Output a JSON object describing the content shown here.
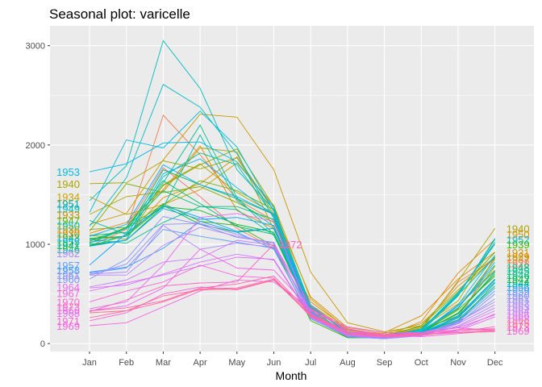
{
  "chart_data": {
    "type": "line",
    "title": "Seasonal plot: varicelle",
    "xlabel": "Month",
    "ylabel": "",
    "categories": [
      "Jan",
      "Feb",
      "Mar",
      "Apr",
      "May",
      "Jun",
      "Jul",
      "Aug",
      "Sep",
      "Oct",
      "Nov",
      "Dec"
    ],
    "ylim": [
      -80,
      3200
    ],
    "yticks": [
      0,
      1000,
      2000,
      3000
    ],
    "grid": true,
    "legend": "none",
    "panel_color": "#ebebeb",
    "series": [
      {
        "name": "1928",
        "color": "#f8766d",
        "values": [
          1010,
          1170,
          1770,
          1480,
          1160,
          960,
          330,
          110,
          60,
          120,
          230,
          880
        ]
      },
      {
        "name": "1929",
        "color": "#f17c4a",
        "values": [
          980,
          1150,
          2300,
          1900,
          1450,
          1240,
          380,
          120,
          80,
          150,
          620,
          850
        ]
      },
      {
        "name": "1930",
        "color": "#e58700",
        "values": [
          1110,
          1220,
          1550,
          1990,
          1340,
          1160,
          420,
          150,
          70,
          220,
          710,
          1050
        ]
      },
      {
        "name": "1931",
        "color": "#d89000",
        "values": [
          1050,
          1080,
          1470,
          1610,
          1880,
          1340,
          470,
          160,
          110,
          280,
          650,
          920
        ]
      },
      {
        "name": "1932",
        "color": "#c99800",
        "values": [
          1200,
          1310,
          1850,
          2310,
          2280,
          1750,
          720,
          210,
          120,
          180,
          580,
          870
        ]
      },
      {
        "name": "1933",
        "color": "#b8a000",
        "values": [
          1300,
          1480,
          1530,
          1970,
          1930,
          1150,
          390,
          140,
          100,
          200,
          540,
          860
        ]
      },
      {
        "name": "1934",
        "color": "#c6a200",
        "values": [
          1480,
          1300,
          1400,
          1550,
          1820,
          1390,
          450,
          140,
          80,
          160,
          400,
          740
        ]
      },
      {
        "name": "1935",
        "color": "#a3a500",
        "values": [
          1090,
          1050,
          1600,
          1810,
          1520,
          1310,
          360,
          130,
          90,
          170,
          430,
          1020
        ]
      },
      {
        "name": "1936",
        "color": "#8fab00",
        "values": [
          1150,
          1170,
          1590,
          1800,
          1960,
          1380,
          350,
          140,
          80,
          140,
          280,
          780
        ]
      },
      {
        "name": "1937",
        "color": "#7cae00",
        "values": [
          1130,
          1610,
          1520,
          1580,
          1420,
          1220,
          340,
          90,
          70,
          120,
          350,
          850
        ]
      },
      {
        "name": "1938",
        "color": "#5bb300",
        "values": [
          1030,
          1170,
          1400,
          1640,
          1540,
          1350,
          380,
          110,
          70,
          180,
          520,
          920
        ]
      },
      {
        "name": "1939",
        "color": "#39b600",
        "values": [
          980,
          1090,
          1410,
          1230,
          1190,
          980,
          230,
          60,
          60,
          110,
          340,
          680
        ]
      },
      {
        "name": "1940",
        "color": "#aba300",
        "values": [
          1610,
          1620,
          1840,
          1760,
          1870,
          1300,
          380,
          100,
          60,
          140,
          630,
          1160
        ]
      },
      {
        "name": "1941",
        "color": "#00b81f",
        "values": [
          990,
          1040,
          1380,
          1340,
          1200,
          1120,
          310,
          80,
          70,
          120,
          300,
          720
        ]
      },
      {
        "name": "1942",
        "color": "#00ba38",
        "values": [
          1060,
          1080,
          1390,
          1200,
          1120,
          1160,
          280,
          60,
          60,
          90,
          260,
          650
        ]
      },
      {
        "name": "1943",
        "color": "#00bc59",
        "values": [
          1090,
          1120,
          1750,
          1600,
          1460,
          1300,
          300,
          70,
          60,
          110,
          310,
          700
        ]
      },
      {
        "name": "1944",
        "color": "#00be6c",
        "values": [
          1010,
          1170,
          1640,
          1410,
          1180,
          1100,
          300,
          80,
          60,
          100,
          240,
          580
        ]
      },
      {
        "name": "1945",
        "color": "#00bf7d",
        "values": [
          1010,
          1160,
          1540,
          1380,
          1380,
          1250,
          290,
          90,
          60,
          110,
          210,
          610
        ]
      },
      {
        "name": "1946",
        "color": "#00c08b",
        "values": [
          1050,
          1010,
          1220,
          1380,
          1350,
          1090,
          320,
          90,
          70,
          110,
          270,
          640
        ]
      },
      {
        "name": "1947",
        "color": "#00c097",
        "values": [
          1240,
          1100,
          1620,
          2200,
          1470,
          1100,
          300,
          100,
          60,
          150,
          490,
          870
        ]
      },
      {
        "name": "1948",
        "color": "#00c1a3",
        "values": [
          1000,
          1040,
          1680,
          1920,
          1800,
          1280,
          310,
          90,
          70,
          130,
          360,
          790
        ]
      },
      {
        "name": "1949",
        "color": "#00bfaf",
        "values": [
          1040,
          1160,
          1370,
          2100,
          1440,
          1180,
          360,
          80,
          70,
          140,
          480,
          1050
        ]
      },
      {
        "name": "1950",
        "color": "#00bebb",
        "values": [
          1440,
          1790,
          3050,
          2570,
          1750,
          1350,
          380,
          100,
          70,
          120,
          480,
          1060
        ]
      },
      {
        "name": "1951",
        "color": "#00bdc4",
        "values": [
          1180,
          1670,
          2610,
          2380,
          1910,
          1260,
          390,
          110,
          70,
          130,
          500,
          1020
        ]
      },
      {
        "name": "1952",
        "color": "#00bcd8",
        "values": [
          1320,
          2050,
          1970,
          2340,
          1980,
          1330,
          370,
          110,
          80,
          140,
          510,
          1000
        ]
      },
      {
        "name": "1953",
        "color": "#00b9e3",
        "values": [
          1730,
          1810,
          2020,
          2030,
          1830,
          1370,
          330,
          80,
          60,
          110,
          390,
          890
        ]
      },
      {
        "name": "1954",
        "color": "#00b4ef",
        "values": [
          1020,
          1080,
          1710,
          1860,
          1570,
          1290,
          280,
          90,
          70,
          120,
          360,
          820
        ]
      },
      {
        "name": "1955",
        "color": "#00aef9",
        "values": [
          1080,
          1200,
          1800,
          1600,
          1480,
          1300,
          320,
          80,
          60,
          110,
          380,
          730
        ]
      },
      {
        "name": "1956",
        "color": "#00a8ff",
        "values": [
          980,
          1040,
          1360,
          1250,
          1270,
          1190,
          300,
          80,
          60,
          100,
          280,
          650
        ]
      },
      {
        "name": "1957",
        "color": "#00a5ff",
        "values": [
          790,
          1110,
          1390,
          1270,
          1130,
          1160,
          290,
          80,
          60,
          100,
          260,
          620
        ]
      },
      {
        "name": "1958",
        "color": "#359cff",
        "values": [
          720,
          770,
          960,
          1230,
          1120,
          950,
          260,
          80,
          60,
          90,
          230,
          560
        ]
      },
      {
        "name": "1959",
        "color": "#619cff",
        "values": [
          710,
          760,
          1150,
          1080,
          1020,
          960,
          250,
          70,
          50,
          90,
          220,
          530
        ]
      },
      {
        "name": "1960",
        "color": "#7f96ff",
        "values": [
          650,
          850,
          1280,
          1200,
          1070,
          1020,
          270,
          70,
          50,
          80,
          200,
          500
        ]
      },
      {
        "name": "1961",
        "color": "#9590ff",
        "values": [
          690,
          800,
          1200,
          1210,
          1100,
          990,
          290,
          70,
          50,
          80,
          210,
          450
        ]
      },
      {
        "name": "1962",
        "color": "#a98bff",
        "values": [
          700,
          720,
          1190,
          950,
          1010,
          970,
          330,
          80,
          70,
          90,
          220,
          420
        ]
      },
      {
        "name": "1963",
        "color": "#b983ff",
        "values": [
          690,
          690,
          990,
          1170,
          1080,
          1010,
          270,
          100,
          80,
          110,
          200,
          390
        ]
      },
      {
        "name": "1964",
        "color": "#c77cff",
        "values": [
          570,
          640,
          820,
          860,
          1040,
          990,
          310,
          90,
          80,
          90,
          180,
          360
        ]
      },
      {
        "name": "1965",
        "color": "#d376ff",
        "values": [
          560,
          590,
          700,
          820,
          900,
          840,
          260,
          80,
          60,
          80,
          170,
          330
        ]
      },
      {
        "name": "1966",
        "color": "#de71f9",
        "values": [
          530,
          610,
          690,
          780,
          870,
          850,
          270,
          90,
          60,
          80,
          140,
          300
        ]
      },
      {
        "name": "1967",
        "color": "#e76bf3",
        "values": [
          350,
          420,
          790,
          1270,
          1310,
          1230,
          300,
          110,
          70,
          80,
          130,
          270
        ]
      },
      {
        "name": "1968",
        "color": "#ef67eb",
        "values": [
          330,
          380,
          560,
          950,
          760,
          740,
          340,
          170,
          110,
          110,
          160,
          290
        ]
      },
      {
        "name": "1969",
        "color": "#f564e3",
        "values": [
          180,
          210,
          370,
          530,
          640,
          620,
          350,
          140,
          80,
          70,
          100,
          130
        ]
      },
      {
        "name": "1970",
        "color": "#fa62db",
        "values": [
          420,
          530,
          620,
          790,
          680,
          660,
          270,
          90,
          70,
          90,
          120,
          170
        ]
      },
      {
        "name": "1971",
        "color": "#fc61d5",
        "values": [
          230,
          310,
          500,
          570,
          540,
          640,
          330,
          150,
          90,
          110,
          160,
          130
        ]
      },
      {
        "name": "1972",
        "color": "#ff61c3",
        "values": [
          320,
          440,
          580,
          610,
          620,
          1000,
          380,
          120,
          90,
          100,
          140,
          140
        ]
      },
      {
        "name": "1973",
        "color": "#ff64b0",
        "values": [
          330,
          360,
          430,
          560,
          600,
          680,
          300,
          120,
          80,
          100,
          140,
          150
        ]
      },
      {
        "name": "1974",
        "color": "#ff689f",
        "values": [
          260,
          330,
          420,
          550,
          560,
          650,
          290,
          100,
          80,
          90,
          110,
          120
        ]
      },
      {
        "name": "1975",
        "color": "#ff6c91",
        "values": [
          310,
          330,
          480,
          540,
          550,
          640,
          280,
          100,
          70,
          90,
          110,
          140
        ]
      }
    ],
    "start_labels": [
      {
        "text": "1953",
        "color": "#00b9e3",
        "y": 1730
      },
      {
        "text": "1940",
        "color": "#aba300",
        "y": 1610
      },
      {
        "text": "1934",
        "color": "#c6a200",
        "y": 1480
      },
      {
        "text": "1951",
        "color": "#00a5a0",
        "y": 1410
      },
      {
        "text": "1949",
        "color": "#00b9c0",
        "y": 1360
      },
      {
        "text": "1933",
        "color": "#c08e00",
        "y": 1300
      },
      {
        "text": "1947",
        "color": "#5bb300",
        "y": 1240
      },
      {
        "text": "1950",
        "color": "#00bebb",
        "y": 1190
      },
      {
        "text": "1936",
        "color": "#a3a500",
        "y": 1150
      },
      {
        "text": "1930",
        "color": "#e58700",
        "y": 1110
      },
      {
        "text": "1943",
        "color": "#00bc59",
        "y": 1070
      },
      {
        "text": "1955",
        "color": "#00aef9",
        "y": 1030
      },
      {
        "text": "1941",
        "color": "#00b81f",
        "y": 990
      },
      {
        "text": "1946",
        "color": "#00c08b",
        "y": 950
      },
      {
        "text": "1962",
        "color": "#a98bff",
        "y": 910
      },
      {
        "text": "1957",
        "color": "#619cff",
        "y": 790
      },
      {
        "text": "1958",
        "color": "#359cff",
        "y": 740
      },
      {
        "text": "1961",
        "color": "#9590ff",
        "y": 690
      },
      {
        "text": "1960",
        "color": "#7f96ff",
        "y": 650
      },
      {
        "text": "1964",
        "color": "#e76bf3",
        "y": 570
      },
      {
        "text": "1967",
        "color": "#f564e3",
        "y": 510
      },
      {
        "text": "1970",
        "color": "#fa62db",
        "y": 420
      },
      {
        "text": "1973",
        "color": "#ff64b0",
        "y": 370
      },
      {
        "text": "1966",
        "color": "#de71f9",
        "y": 340
      },
      {
        "text": "1968",
        "color": "#ef67eb",
        "y": 310
      },
      {
        "text": "1971",
        "color": "#fc61d5",
        "y": 230
      },
      {
        "text": "1969",
        "color": "#f564e3",
        "y": 180
      }
    ],
    "end_labels": [
      {
        "text": "1940",
        "color": "#aba300",
        "y": 1160
      },
      {
        "text": "1950",
        "color": "#d89000",
        "y": 1100
      },
      {
        "text": "1952",
        "color": "#00bcd8",
        "y": 1050
      },
      {
        "text": "1939",
        "color": "#39b600",
        "y": 1000
      },
      {
        "text": "1931",
        "color": "#c99800",
        "y": 920
      },
      {
        "text": "1929",
        "color": "#e58700",
        "y": 880
      },
      {
        "text": "1937",
        "color": "#b8a000",
        "y": 850
      },
      {
        "text": "1928",
        "color": "#f8766d",
        "y": 810
      },
      {
        "text": "1948",
        "color": "#00c08b",
        "y": 770
      },
      {
        "text": "1945",
        "color": "#00bf7d",
        "y": 730
      },
      {
        "text": "1946",
        "color": "#00c097",
        "y": 690
      },
      {
        "text": "1942",
        "color": "#00ba38",
        "y": 650
      },
      {
        "text": "1944",
        "color": "#00be6c",
        "y": 610
      },
      {
        "text": "1956",
        "color": "#00a8ff",
        "y": 570
      },
      {
        "text": "1959",
        "color": "#619cff",
        "y": 530
      },
      {
        "text": "1960",
        "color": "#7f96ff",
        "y": 490
      },
      {
        "text": "1961",
        "color": "#9590ff",
        "y": 450
      },
      {
        "text": "1962",
        "color": "#a98bff",
        "y": 410
      },
      {
        "text": "1963",
        "color": "#b983ff",
        "y": 370
      },
      {
        "text": "1964",
        "color": "#c77cff",
        "y": 330
      },
      {
        "text": "1966",
        "color": "#de71f9",
        "y": 290
      },
      {
        "text": "1968",
        "color": "#ef67eb",
        "y": 250
      },
      {
        "text": "1975",
        "color": "#ff6c91",
        "y": 210
      },
      {
        "text": "1973",
        "color": "#ff64b0",
        "y": 170
      },
      {
        "text": "1969",
        "color": "#fa62db",
        "y": 130
      }
    ],
    "annotations": [
      {
        "text": "1972",
        "color": "#ff61c3",
        "x": "Jun",
        "y": 1000
      }
    ]
  }
}
